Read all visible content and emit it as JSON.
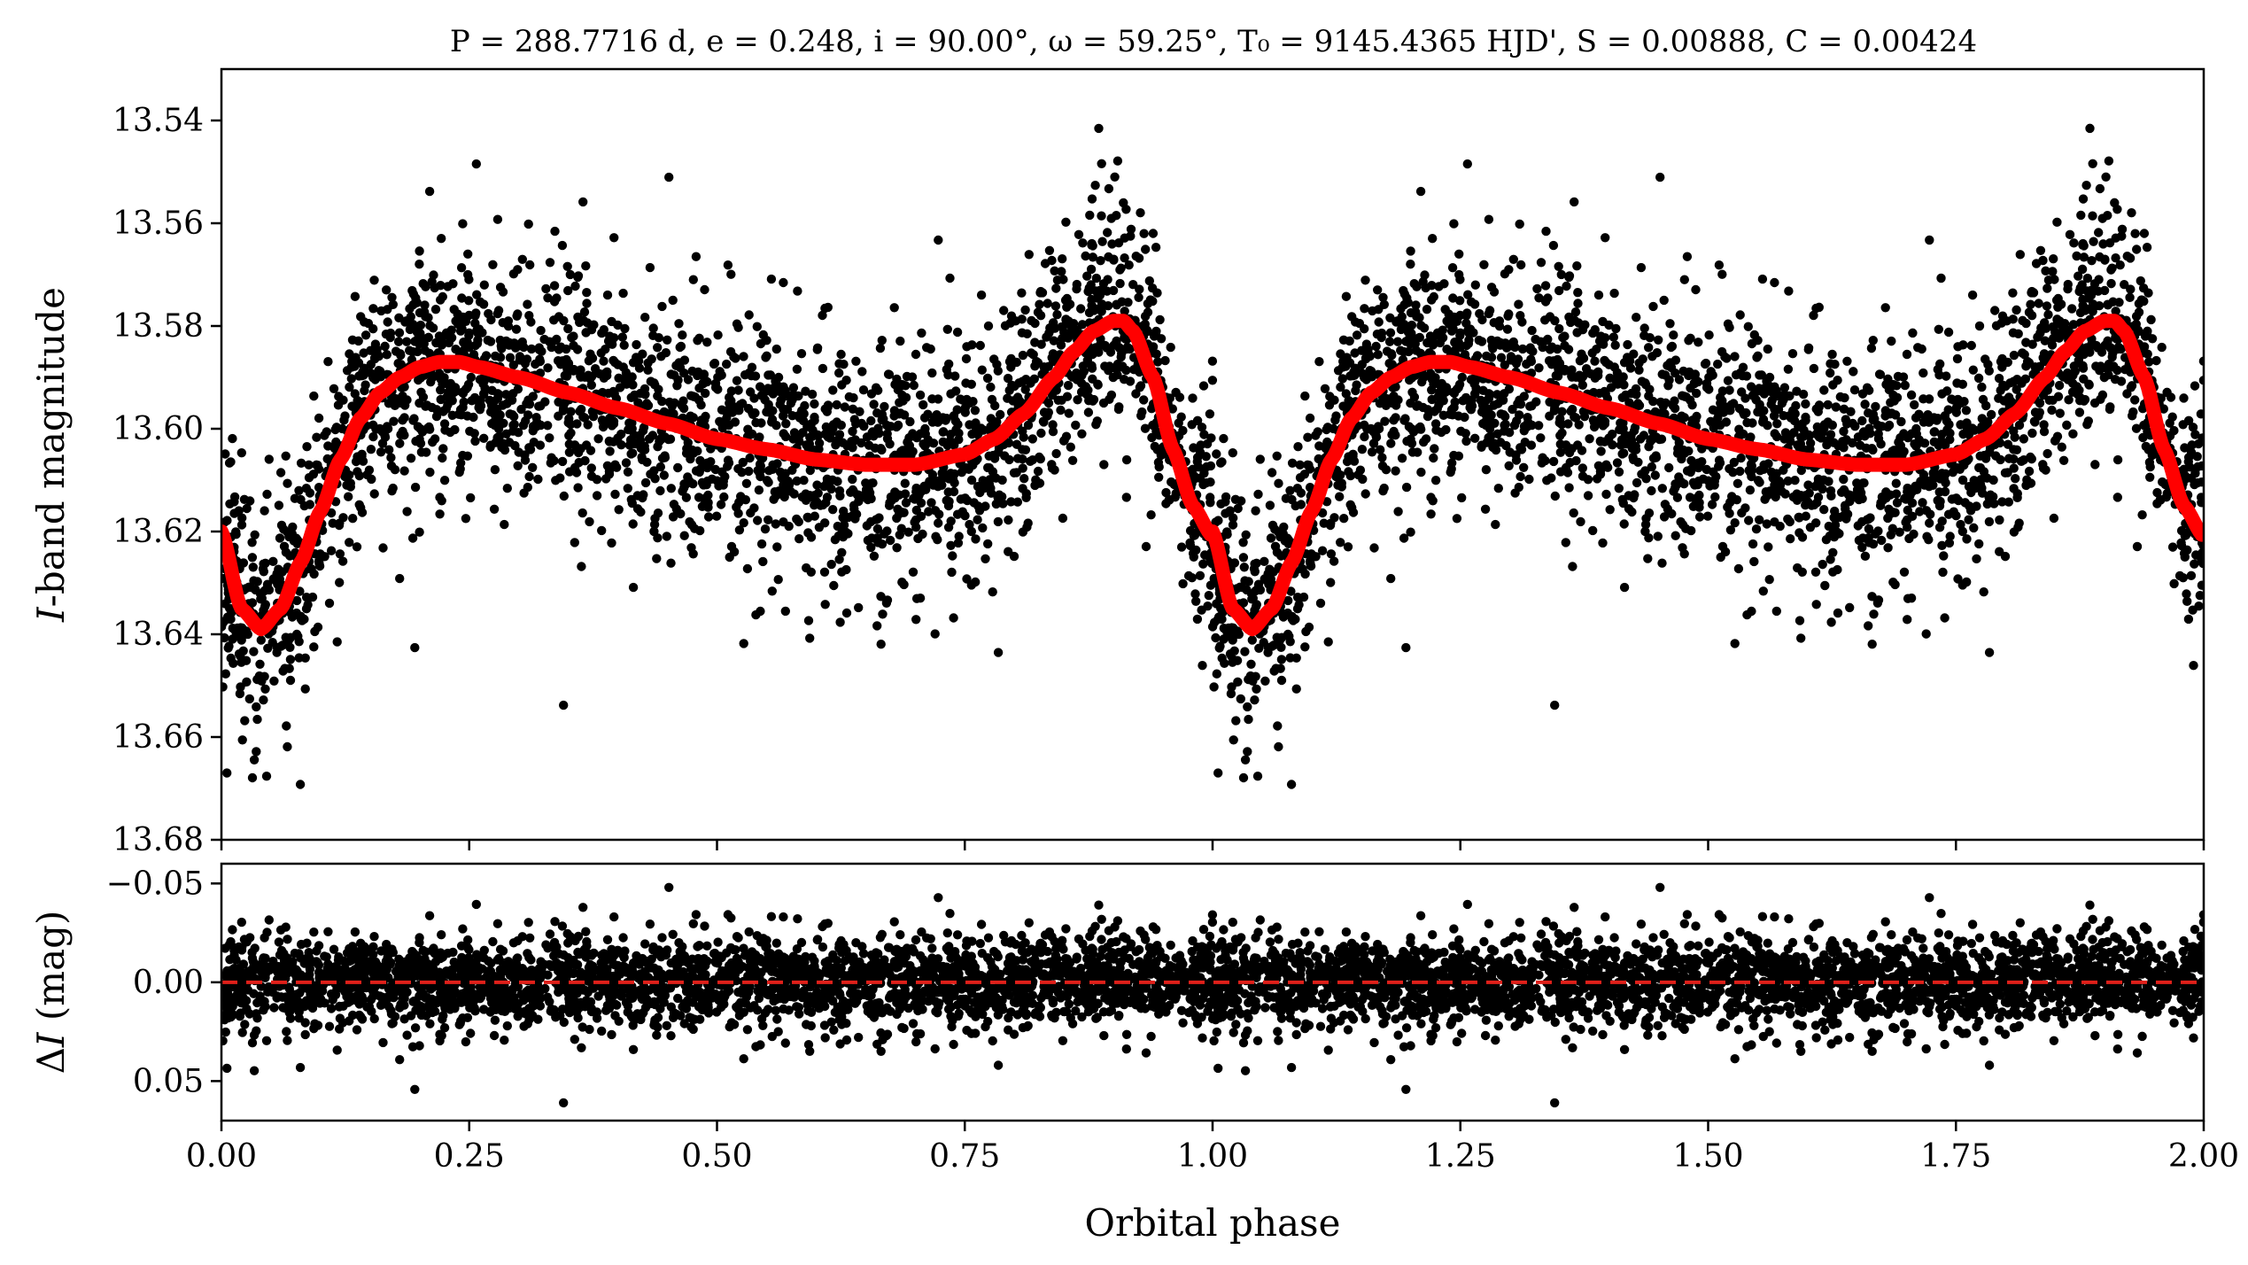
{
  "title": "P = 288.7716 d, e = 0.248, i = 90.00°, ω = 59.25°, T₀ = 9145.4365 HJD', S = 0.00888, C = 0.00424",
  "colors": {
    "points": "#000000",
    "model": "#ff0000",
    "zero_line": "#e0201a",
    "axes": "#000000"
  },
  "chart_data": [
    {
      "type": "scatter",
      "panel": "light-curve",
      "xlabel": "Orbital phase",
      "ylabel": "I-band magnitude",
      "xlim": [
        0,
        2
      ],
      "ylim": [
        13.68,
        13.53
      ],
      "y_inverted": true,
      "xticks": [
        "0.00",
        "0.25",
        "0.50",
        "0.75",
        "1.00",
        "1.25",
        "1.50",
        "1.75",
        "2.00"
      ],
      "yticks": [
        "13.54",
        "13.56",
        "13.58",
        "13.60",
        "13.62",
        "13.64",
        "13.66",
        "13.68"
      ],
      "ytick_values": [
        13.54,
        13.56,
        13.58,
        13.6,
        13.62,
        13.64,
        13.66,
        13.68
      ],
      "model_curve": {
        "phase": [
          0.0,
          0.02,
          0.04,
          0.06,
          0.08,
          0.1,
          0.12,
          0.14,
          0.16,
          0.18,
          0.2,
          0.22,
          0.24,
          0.26,
          0.3,
          0.35,
          0.4,
          0.45,
          0.5,
          0.55,
          0.6,
          0.65,
          0.7,
          0.75,
          0.78,
          0.81,
          0.84,
          0.86,
          0.88,
          0.9,
          0.91,
          0.92,
          0.94,
          0.96,
          0.98,
          1.0
        ],
        "magnitude": [
          13.62,
          13.635,
          13.639,
          13.635,
          13.626,
          13.616,
          13.606,
          13.598,
          13.593,
          13.59,
          13.588,
          13.587,
          13.587,
          13.588,
          13.59,
          13.593,
          13.596,
          13.599,
          13.602,
          13.604,
          13.606,
          13.607,
          13.607,
          13.605,
          13.602,
          13.597,
          13.59,
          13.585,
          13.581,
          13.579,
          13.579,
          13.581,
          13.59,
          13.604,
          13.615,
          13.621
        ]
      },
      "observations_summary": {
        "approx_count_per_cycle": 2700,
        "scatter_sigma_mag": 0.011,
        "min_observed_mag": 13.539,
        "max_observed_mag": 13.673
      }
    },
    {
      "type": "scatter",
      "panel": "residuals",
      "xlabel": "Orbital phase",
      "ylabel": "ΔI (mag)",
      "xlim": [
        0,
        2
      ],
      "ylim": [
        0.07,
        -0.06
      ],
      "y_inverted": true,
      "yticks": [
        "−0.05",
        "0.00",
        "0.05"
      ],
      "ytick_values": [
        -0.05,
        0.0,
        0.05
      ],
      "zero_line": 0.0,
      "observations_summary": {
        "scatter_sigma_mag": 0.011,
        "min_observed": -0.048,
        "max_observed": 0.061
      }
    }
  ]
}
